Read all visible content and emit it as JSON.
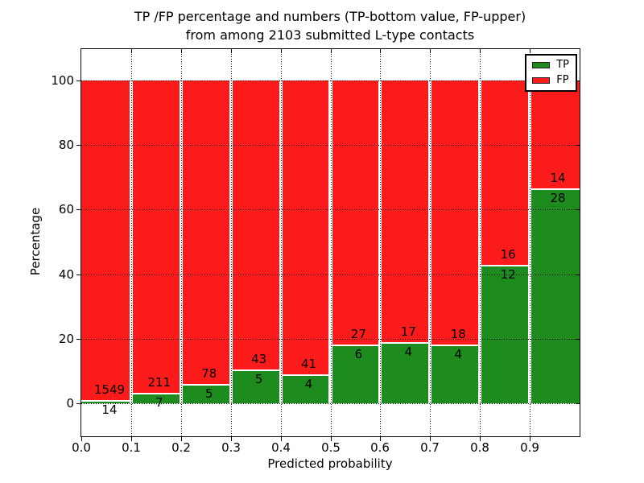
{
  "title": {
    "line1": "TP /FP percentage and numbers (TP-bottom value, FP-upper)",
    "line2": "from among 2103 submitted L-type contacts"
  },
  "axes": {
    "ylabel": "Percentage",
    "xlabel": "Predicted probability",
    "y_ticks": [
      0,
      20,
      40,
      60,
      80,
      100
    ],
    "x_ticks": [
      "0.0",
      "0.1",
      "0.2",
      "0.3",
      "0.4",
      "0.5",
      "0.6",
      "0.7",
      "0.8",
      "0.9"
    ]
  },
  "legend": {
    "items": [
      {
        "label": "TP",
        "color": "#1e8b1e"
      },
      {
        "label": "FP",
        "color": "#fc1b1b"
      }
    ]
  },
  "chart_data": {
    "type": "bar",
    "subtype": "stacked-percentage",
    "title": "TP /FP percentage and numbers (TP-bottom value, FP-upper) from among 2103 submitted L-type contacts",
    "xlabel": "Predicted probability",
    "ylabel": "Percentage",
    "total_contacts": 2103,
    "categories": [
      "0.0-0.1",
      "0.1-0.2",
      "0.2-0.3",
      "0.3-0.4",
      "0.4-0.5",
      "0.5-0.6",
      "0.6-0.7",
      "0.7-0.8",
      "0.8-0.9",
      "0.9-1.0"
    ],
    "bin_edges": [
      0.0,
      0.1,
      0.2,
      0.3,
      0.4,
      0.5,
      0.6,
      0.7,
      0.8,
      0.9,
      1.0
    ],
    "series": [
      {
        "name": "TP",
        "color": "#1e8b1e",
        "values": [
          14,
          7,
          5,
          5,
          4,
          6,
          4,
          4,
          12,
          28
        ]
      },
      {
        "name": "FP",
        "color": "#fc1b1b",
        "values": [
          1549,
          211,
          78,
          43,
          41,
          27,
          17,
          18,
          16,
          14
        ]
      }
    ],
    "bar_totals_percent": 100,
    "xlim": [
      0.0,
      1.0
    ],
    "ylim": [
      -10,
      110
    ],
    "grid": "dotted",
    "legend_position": "upper right"
  }
}
